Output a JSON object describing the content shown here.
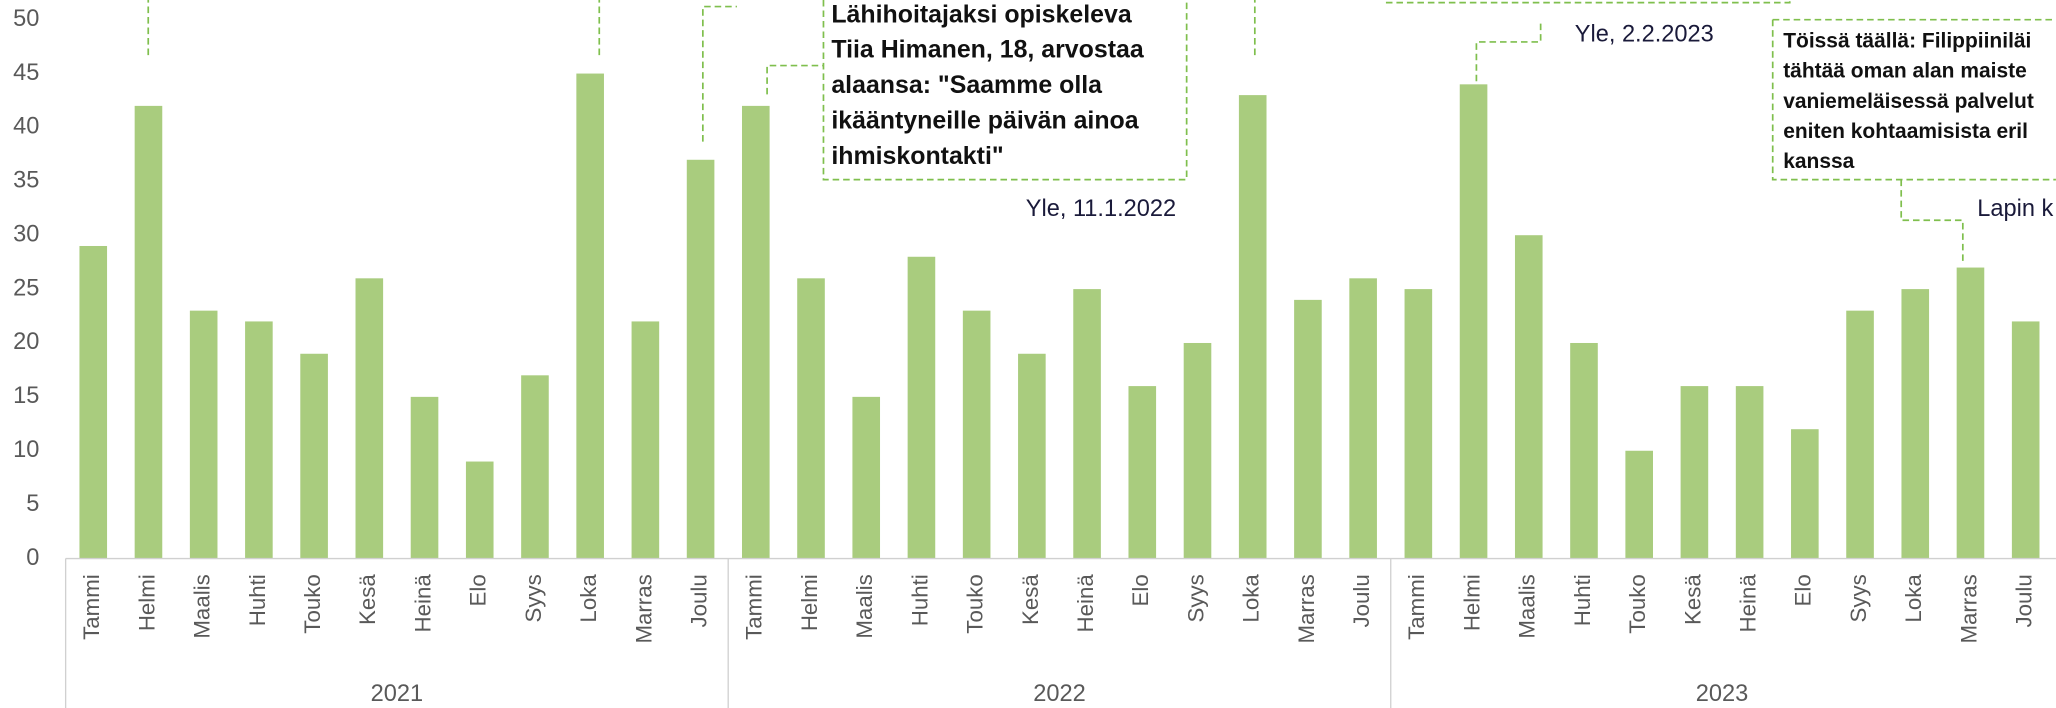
{
  "chart_data": {
    "type": "bar",
    "categories": [
      "Tammi",
      "Helmi",
      "Maalis",
      "Huhti",
      "Touko",
      "Kesä",
      "Heinä",
      "Elo",
      "Syys",
      "Loka",
      "Marras",
      "Joulu",
      "Tammi",
      "Helmi",
      "Maalis",
      "Huhti",
      "Touko",
      "Kesä",
      "Heinä",
      "Elo",
      "Syys",
      "Loka",
      "Marras",
      "Joulu",
      "Tammi",
      "Helmi",
      "Maalis",
      "Huhti",
      "Touko",
      "Kesä",
      "Heinä",
      "Elo",
      "Syys",
      "Loka",
      "Marras",
      "Joulu"
    ],
    "years": [
      "2021",
      "2022",
      "2023"
    ],
    "values": [
      29,
      42,
      23,
      22,
      19,
      26,
      15,
      9,
      17,
      45,
      22,
      37,
      42,
      26,
      15,
      28,
      23,
      19,
      25,
      16,
      20,
      43,
      24,
      26,
      25,
      44,
      30,
      20,
      10,
      16,
      16,
      12,
      23,
      25,
      27,
      22
    ],
    "color": "#a9cc7e",
    "ylim": [
      0,
      50
    ],
    "yticks": [
      0,
      5,
      10,
      15,
      20,
      25,
      30,
      35,
      40,
      45,
      50
    ],
    "grid": false,
    "annotations": [
      {
        "lines": [
          "Lähihoitajaksi opiskeleva",
          "Tiia Himanen, 18, arvostaa",
          "alaansa: \"Saamme olla",
          "ikääntyneille päivän ainoa",
          "ihmiskontakti\""
        ],
        "source": "Yle, 11.1.2022"
      },
      {
        "source": "Yle, 2.2.2023"
      },
      {
        "lines": [
          "Töissä täällä: Filippiiniläi",
          "tähtää oman alan maiste",
          "vaniemeläisessä palvelut",
          "eniten kohtaamisista eril",
          "kanssa"
        ],
        "source": "Lapin k"
      }
    ]
  }
}
